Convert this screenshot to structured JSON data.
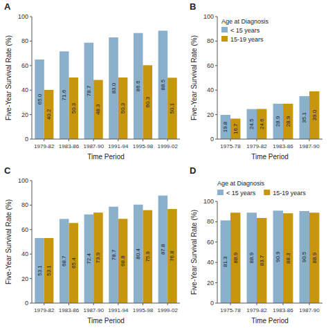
{
  "chart_data": [
    {
      "type": "bar",
      "title": "A",
      "xlabel": "Time Period",
      "ylabel": "Five-Year Survival Rate (%)",
      "categories": [
        "1979-82",
        "1983-86",
        "1987-90",
        "1991-94",
        "1995-98",
        "1999-02"
      ],
      "series": [
        {
          "color": "#8ab0cc",
          "values": [
            65.0,
            71.6,
            78.7,
            83.0,
            86.6,
            88.5
          ],
          "value_labels": [
            "65.0",
            "71.6",
            "78.7",
            "83.0",
            "86.6",
            "88.5"
          ]
        },
        {
          "color": "#c8960c",
          "values": [
            40.2,
            50.3,
            48.3,
            50.3,
            60.3,
            50.1
          ],
          "value_labels": [
            "40.2",
            "50.3",
            "48.3",
            "50.3",
            "60.3",
            "50.1"
          ]
        }
      ],
      "ylim": [
        0,
        100
      ],
      "yticks": [
        0,
        20,
        40,
        60,
        80,
        100
      ],
      "data_labels": true,
      "grid": false
    },
    {
      "type": "bar",
      "title": "B",
      "xlabel": "Time Period",
      "ylabel": "Five-Year Survival Rate (%)",
      "categories": [
        "1975-78",
        "1979-82",
        "1983-86",
        "1987-90"
      ],
      "series": [
        {
          "name": "< 15 years",
          "color": "#8ab0cc",
          "values": [
            19.8,
            24.5,
            28.9,
            35.1
          ],
          "value_labels": [
            "19.8",
            "24.5",
            "28.9",
            "35.1"
          ]
        },
        {
          "name": "15-19 years",
          "color": "#c8960c",
          "values": [
            16.7,
            24.6,
            28.9,
            39.0
          ],
          "value_labels": [
            "16.7",
            "24.6",
            "28.9",
            "39.0"
          ]
        }
      ],
      "ylim": [
        0,
        100
      ],
      "yticks": [
        0,
        20,
        40,
        60,
        80,
        100
      ],
      "data_labels": true,
      "grid": false,
      "legend": "upper left",
      "legend_title": "Age at Diagnosis"
    },
    {
      "type": "bar",
      "title": "C",
      "xlabel": "Time Period",
      "ylabel": "Five-Year Survival Rate (%)",
      "categories": [
        "1979-82",
        "1983-86",
        "1987-90",
        "1991-94",
        "1995-98",
        "1999-02"
      ],
      "series": [
        {
          "color": "#8ab0cc",
          "values": [
            53.1,
            68.7,
            72.4,
            78.7,
            80.4,
            87.8
          ],
          "value_labels": [
            "53.1",
            "68.7",
            "72.4",
            "78.7",
            "80.4",
            "87.8"
          ]
        },
        {
          "color": "#c8960c",
          "values": [
            53.1,
            65.4,
            73.9,
            68.8,
            75.9,
            76.8
          ],
          "value_labels": [
            "53.1",
            "65.4",
            "73.9",
            "68.8",
            "75.9",
            "76.8"
          ]
        }
      ],
      "ylim": [
        0,
        100
      ],
      "yticks": [
        0,
        20,
        40,
        60,
        80,
        100
      ],
      "data_labels": true,
      "grid": false
    },
    {
      "type": "bar",
      "title": "D",
      "xlabel": "Time Period",
      "ylabel": "Five-Year Survival Rate (%)",
      "categories": [
        "1975-78",
        "1979-82",
        "1983-86",
        "1987-90"
      ],
      "series": [
        {
          "name": "< 15 years",
          "color": "#8ab0cc",
          "values": [
            81.3,
            88.9,
            90.9,
            90.5
          ],
          "value_labels": [
            "81.3",
            "88.9",
            "90.9",
            "90.5"
          ]
        },
        {
          "name": "15-19 years",
          "color": "#c8960c",
          "values": [
            88.9,
            83.7,
            88.3,
            88.9
          ],
          "value_labels": [
            "88.9",
            "83.7",
            "88.3",
            "88.9"
          ]
        }
      ],
      "ylim": [
        0,
        100
      ],
      "yticks": [
        0,
        20,
        40,
        60,
        80,
        100
      ],
      "data_labels": true,
      "grid": false,
      "legend": "top",
      "legend_title": "Age at Diagnosis"
    }
  ]
}
